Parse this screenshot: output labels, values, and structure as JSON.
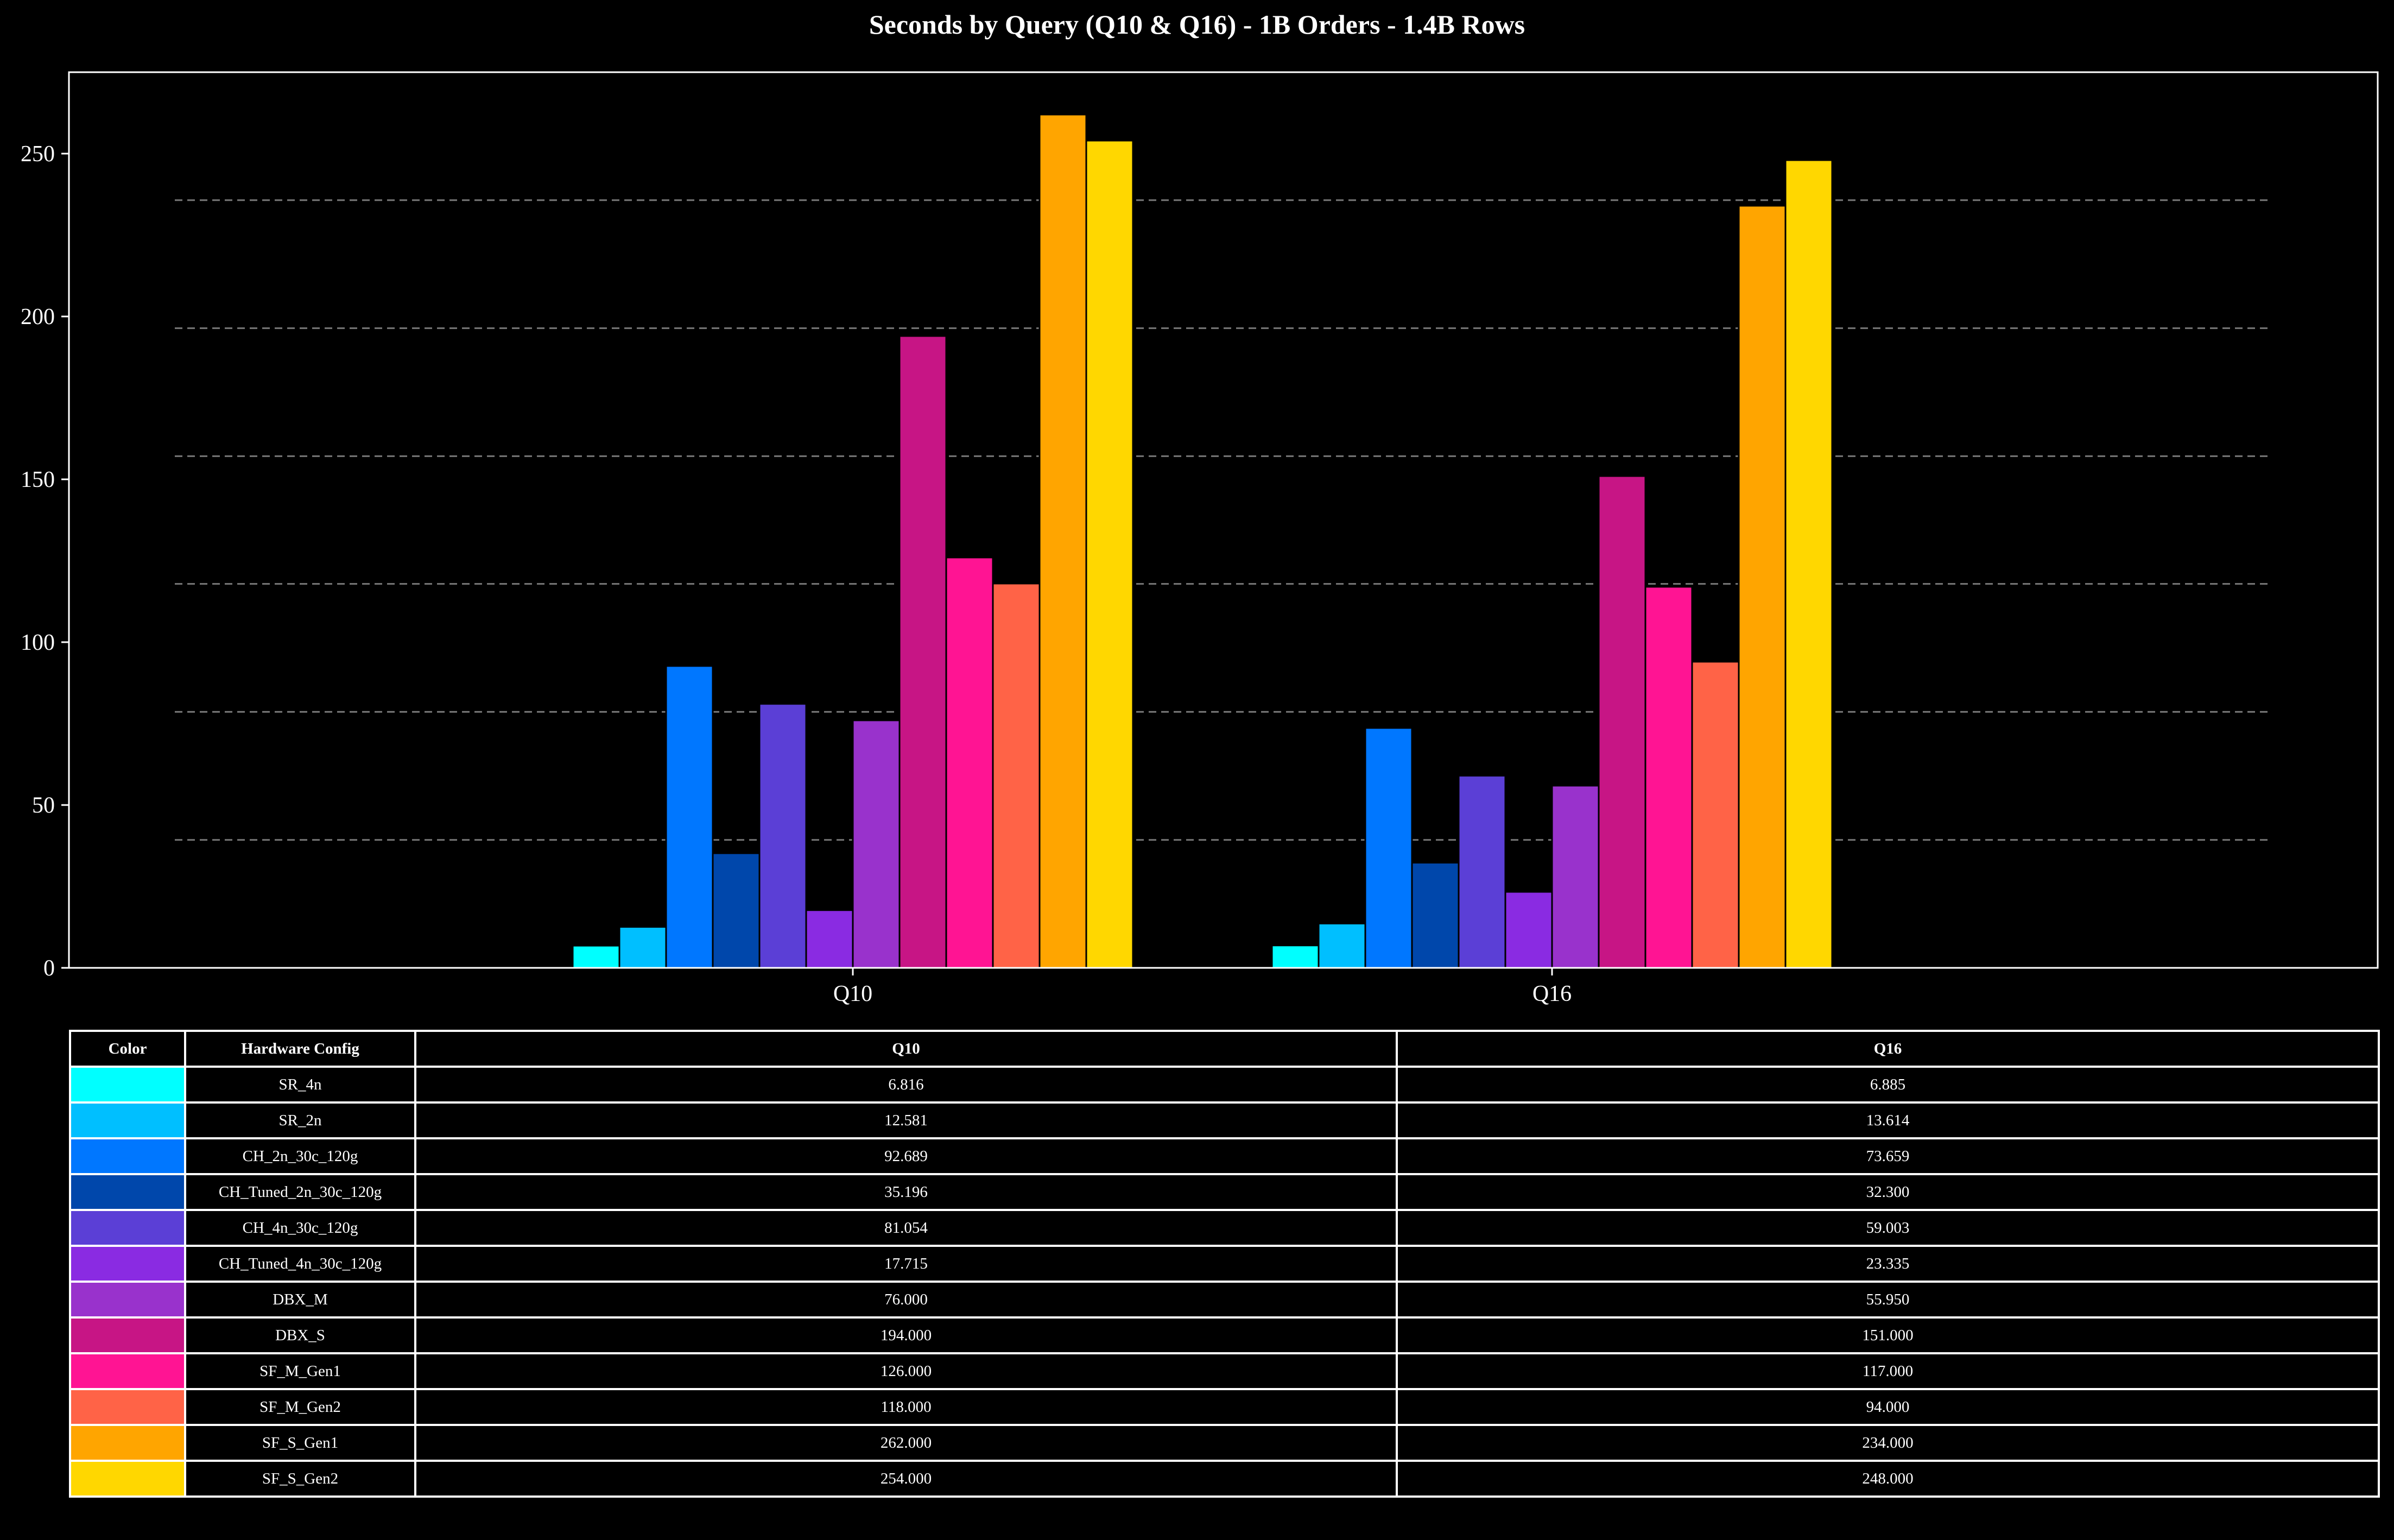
{
  "chart_data": {
    "type": "bar",
    "title": "Seconds by Query (Q10 & Q16) - 1B Orders - 1.4B Rows",
    "xlabel": "",
    "ylabel": "",
    "categories": [
      "Q10",
      "Q16"
    ],
    "ylim": [
      0,
      275
    ],
    "yticks": [
      0,
      50,
      100,
      150,
      200,
      250
    ],
    "grid": "dashed horizontal",
    "series": [
      {
        "name": "SR_4n",
        "color": "#00FFFF",
        "values": [
          6.816,
          6.885
        ]
      },
      {
        "name": "SR_2n",
        "color": "#00BFFF",
        "values": [
          12.581,
          13.614
        ]
      },
      {
        "name": "CH_2n_30c_120g",
        "color": "#0077FF",
        "values": [
          92.689,
          73.659
        ]
      },
      {
        "name": "CH_Tuned_2n_30c_120g",
        "color": "#0047AB",
        "values": [
          35.196,
          32.3
        ]
      },
      {
        "name": "CH_4n_30c_120g",
        "color": "#5B3FD6",
        "values": [
          81.054,
          59.003
        ]
      },
      {
        "name": "CH_Tuned_4n_30c_120g",
        "color": "#8A2BE2",
        "values": [
          17.715,
          23.335
        ]
      },
      {
        "name": "DBX_M",
        "color": "#9932CC",
        "values": [
          76.0,
          55.95
        ]
      },
      {
        "name": "DBX_S",
        "color": "#C71585",
        "values": [
          194.0,
          151.0
        ]
      },
      {
        "name": "SF_M_Gen1",
        "color": "#FF1493",
        "values": [
          126.0,
          117.0
        ]
      },
      {
        "name": "SF_M_Gen2",
        "color": "#FF6347",
        "values": [
          118.0,
          94.0
        ]
      },
      {
        "name": "SF_S_Gen1",
        "color": "#FFA500",
        "values": [
          262.0,
          234.0
        ]
      },
      {
        "name": "SF_S_Gen2",
        "color": "#FFD700",
        "values": [
          254.0,
          248.0
        ]
      }
    ]
  },
  "table": {
    "headers": [
      "Color",
      "Hardware Config",
      "Q10",
      "Q16"
    ],
    "rows": [
      {
        "config": "SR_4n",
        "q10": "6.816",
        "q16": "6.885"
      },
      {
        "config": "SR_2n",
        "q10": "12.581",
        "q16": "13.614"
      },
      {
        "config": "CH_2n_30c_120g",
        "q10": "92.689",
        "q16": "73.659"
      },
      {
        "config": "CH_Tuned_2n_30c_120g",
        "q10": "35.196",
        "q16": "32.300"
      },
      {
        "config": "CH_4n_30c_120g",
        "q10": "81.054",
        "q16": "59.003"
      },
      {
        "config": "CH_Tuned_4n_30c_120g",
        "q10": "17.715",
        "q16": "23.335"
      },
      {
        "config": "DBX_M",
        "q10": "76.000",
        "q16": "55.950"
      },
      {
        "config": "DBX_S",
        "q10": "194.000",
        "q16": "151.000"
      },
      {
        "config": "SF_M_Gen1",
        "q10": "126.000",
        "q16": "117.000"
      },
      {
        "config": "SF_M_Gen2",
        "q10": "118.000",
        "q16": "94.000"
      },
      {
        "config": "SF_S_Gen1",
        "q10": "262.000",
        "q16": "234.000"
      },
      {
        "config": "SF_S_Gen2",
        "q10": "254.000",
        "q16": "248.000"
      }
    ]
  }
}
